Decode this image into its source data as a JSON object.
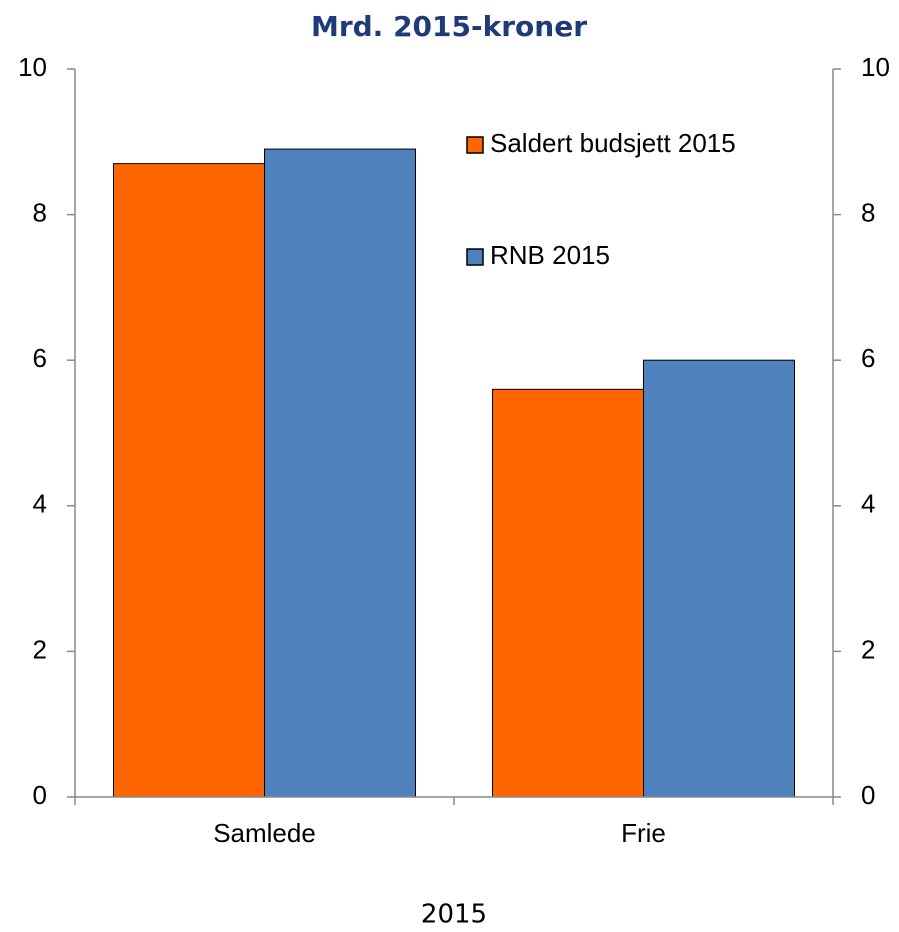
{
  "chart_data": {
    "type": "bar",
    "title": "Mrd. 2015-kroner",
    "x_label": "2015",
    "categories": [
      "Samlede",
      "Frie"
    ],
    "series": [
      {
        "name": "Saldert budsjett 2015",
        "color": "#ff6600",
        "values": [
          8.7,
          5.6
        ]
      },
      {
        "name": "RNB 2015",
        "color": "#4f81bd",
        "values": [
          8.9,
          6.0
        ]
      }
    ],
    "ylim": [
      0,
      10
    ],
    "yticks": [
      0,
      2,
      4,
      6,
      8,
      10
    ],
    "y2lim": [
      0,
      10
    ],
    "y2ticks": [
      0,
      2,
      4,
      6,
      8,
      10
    ],
    "grid": false
  }
}
